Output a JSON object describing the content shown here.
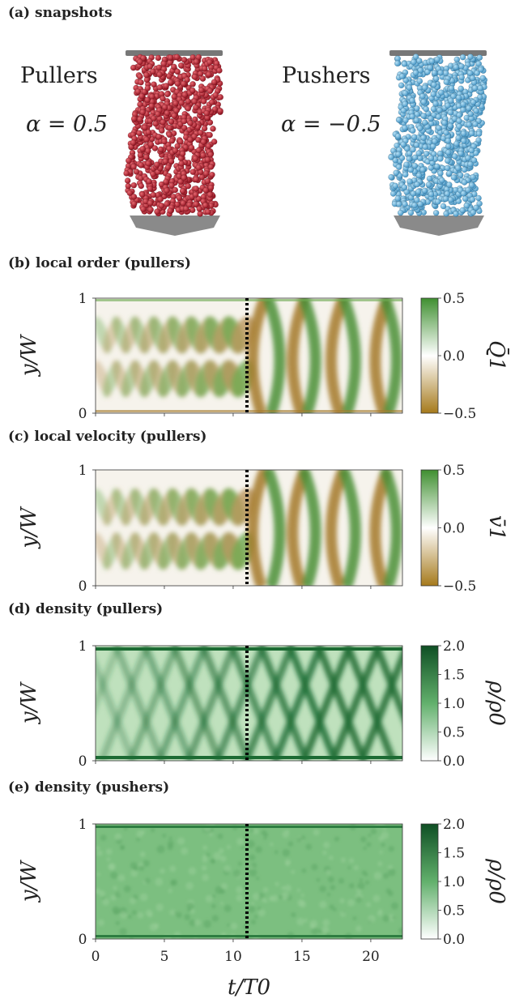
{
  "panels": {
    "a": "(a) snapshots",
    "b": "(b) local order (pullers)",
    "c": "(c) local velocity (pullers)",
    "d": "(d) density (pullers)",
    "e": "(e) density (pushers)"
  },
  "snapshots": {
    "pullers_label": "Pullers",
    "pullers_alpha": "α = 0.5",
    "pushers_label": "Pushers",
    "pushers_alpha": "α = −0.5",
    "pullers_color": "#b5162a",
    "pushers_color": "#4aa3d4"
  },
  "chart_data": [
    {
      "type": "heatmap",
      "title": "(b) local order (pullers)",
      "ylabel": "y/W",
      "yticks": [
        "0",
        "1"
      ],
      "colorbar": {
        "label": "Q̄1",
        "ticks": [
          "0.5",
          "0.0",
          "−0.5"
        ],
        "range": [
          -0.5,
          0.5
        ],
        "colors": [
          "#a67a1c",
          "#ffffff",
          "#3f8f30"
        ]
      },
      "xlim": [
        0,
        22.3
      ],
      "marker_t": 11,
      "pattern": "diverging"
    },
    {
      "type": "heatmap",
      "title": "(c) local velocity (pullers)",
      "ylabel": "y/W",
      "yticks": [
        "0",
        "1"
      ],
      "colorbar": {
        "label": "v̄1",
        "ticks": [
          "0.5",
          "0.0",
          "−0.5"
        ],
        "range": [
          -0.5,
          0.5
        ],
        "colors": [
          "#a67a1c",
          "#ffffff",
          "#3f8f30"
        ]
      },
      "xlim": [
        0,
        22.3
      ],
      "marker_t": 11,
      "pattern": "diverging"
    },
    {
      "type": "heatmap",
      "title": "(d) density (pullers)",
      "ylabel": "y/W",
      "yticks": [
        "0",
        "1"
      ],
      "colorbar": {
        "label": "ρ/ρ0",
        "ticks": [
          "2.0",
          "1.5",
          "1.0",
          "0.5",
          "0.0"
        ],
        "range": [
          0,
          2
        ],
        "colors": [
          "#ffffff",
          "#0f4f24"
        ]
      },
      "xlim": [
        0,
        22.3
      ],
      "marker_t": 11,
      "pattern": "density-waves"
    },
    {
      "type": "heatmap",
      "title": "(e) density (pushers)",
      "ylabel": "y/W",
      "yticks": [
        "0",
        "1"
      ],
      "xlabel": "t/T0",
      "xticks": [
        0,
        5,
        10,
        15,
        20
      ],
      "colorbar": {
        "label": "ρ/ρ0",
        "ticks": [
          "2.0",
          "1.5",
          "1.0",
          "0.5",
          "0.0"
        ],
        "range": [
          0,
          2
        ],
        "colors": [
          "#ffffff",
          "#0f4f24"
        ]
      },
      "xlim": [
        0,
        22.3
      ],
      "marker_t": 11,
      "pattern": "uniform"
    }
  ]
}
